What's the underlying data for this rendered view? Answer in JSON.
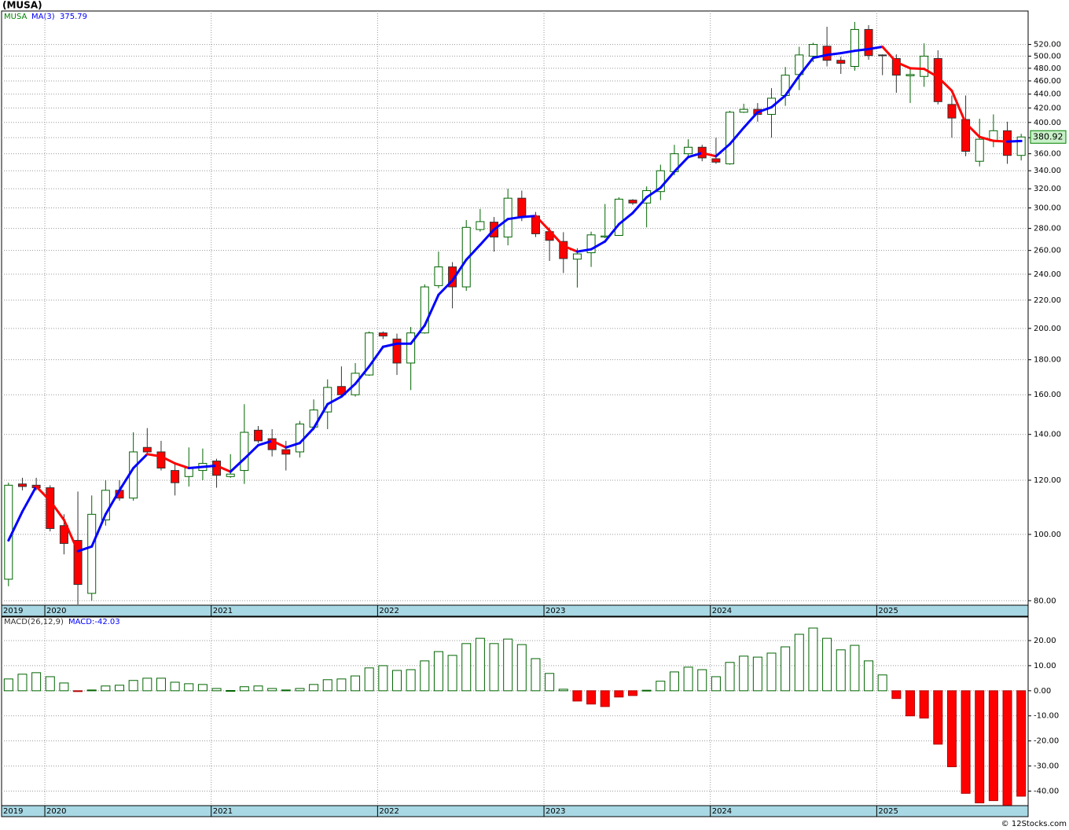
{
  "chart_data": [
    {
      "type": "candlestick",
      "title": "(MUSA)",
      "symbol": "MUSA",
      "log_scale": true,
      "grid": true,
      "up_color": "#006400",
      "down_color": "#ff0000",
      "open": [
        86,
        118.5,
        118,
        117,
        103,
        98,
        82,
        105,
        116,
        113,
        134,
        132,
        124,
        121.5,
        124,
        128,
        121.5,
        124,
        142,
        138,
        133,
        132,
        143.5,
        151,
        164.5,
        160,
        171,
        197,
        193,
        178,
        197,
        231,
        246,
        230,
        279,
        286,
        272,
        310,
        292,
        277,
        268,
        252.5,
        258,
        272,
        273.5,
        308,
        305,
        317,
        339,
        360,
        368,
        354,
        348,
        414,
        418,
        411,
        438,
        470,
        500,
        517,
        493,
        483,
        547,
        502,
        496,
        468,
        467,
        496,
        425,
        404,
        351,
        376,
        389,
        358
      ],
      "high": [
        119,
        121,
        121,
        118,
        107,
        115.5,
        114,
        120,
        120,
        141,
        143,
        137,
        127.5,
        134,
        133.5,
        129,
        131,
        155,
        144,
        142.5,
        137,
        146.5,
        157.5,
        168.5,
        176,
        178,
        198,
        198,
        196.5,
        201,
        232,
        259,
        250,
        288,
        299,
        291,
        320,
        318,
        296,
        281,
        276.5,
        262,
        277,
        304,
        311,
        309,
        322.5,
        347,
        371,
        378,
        371,
        380,
        416,
        426,
        427,
        449,
        482,
        516,
        523,
        552,
        499,
        561,
        555,
        503,
        503,
        479,
        522,
        510,
        438,
        438,
        405,
        411,
        401,
        385
      ],
      "low": [
        84,
        116,
        116,
        101,
        93.5,
        79,
        80,
        103,
        112,
        112,
        131,
        124,
        114,
        117.5,
        120,
        117,
        121,
        118.5,
        136,
        130,
        124,
        129.5,
        142,
        142.5,
        159,
        159,
        170.5,
        193,
        171,
        162.5,
        196.5,
        229,
        214,
        227,
        277,
        259,
        264.5,
        287,
        272,
        251,
        241,
        229.5,
        246,
        271,
        273,
        303,
        281,
        308,
        335,
        357,
        351,
        348,
        347,
        413,
        401,
        380,
        423,
        446,
        490,
        483,
        471,
        476,
        494,
        469,
        442,
        427,
        451,
        425,
        380,
        357,
        345,
        368,
        348,
        352
      ],
      "close": [
        118,
        117.5,
        117,
        102,
        97,
        84.5,
        107,
        116,
        113,
        132,
        132,
        125,
        119,
        125,
        127,
        122,
        122.5,
        141,
        137,
        133,
        131,
        145,
        152,
        164,
        160,
        172,
        197,
        195,
        178,
        197,
        230,
        246,
        230,
        281,
        286.5,
        272,
        310,
        291,
        275,
        269,
        253,
        257,
        274,
        273,
        309,
        305,
        318,
        340,
        360,
        368,
        355,
        350,
        414,
        418,
        411,
        434,
        469,
        502,
        520,
        493,
        488,
        547,
        501,
        501,
        469,
        470,
        500,
        429,
        406,
        363,
        378,
        389,
        358,
        380.92
      ],
      "ma": {
        "name": "MA(3)",
        "up_color": "#0000ff",
        "down_color": "#ff0000",
        "values": [
          98,
          108,
          117.5,
          112,
          105,
          94.5,
          96,
          107,
          116,
          125,
          131,
          130,
          127,
          125,
          125.5,
          126,
          123.5,
          129,
          135,
          137,
          134,
          136,
          143,
          155,
          159,
          166,
          176,
          188,
          190,
          190,
          202,
          224,
          235,
          252,
          265,
          279,
          289,
          291,
          292,
          278,
          264,
          259,
          261,
          268,
          284,
          295,
          311,
          321,
          339,
          356,
          361,
          357,
          372,
          393,
          414,
          421,
          438,
          468,
          497,
          502,
          505,
          509,
          512,
          516,
          490,
          480,
          479,
          466,
          445,
          399,
          381,
          376,
          375,
          375.79
        ]
      },
      "ylim": [
        78.8,
        582
      ],
      "yticks": [
        {
          "value": 80,
          "label": "80.00"
        },
        {
          "value": 100,
          "label": "100.00"
        },
        {
          "value": 120,
          "label": "120.00"
        },
        {
          "value": 140,
          "label": "140.00"
        },
        {
          "value": 160,
          "label": "160.00"
        },
        {
          "value": 180,
          "label": "180.00"
        },
        {
          "value": 200,
          "label": "200.00"
        },
        {
          "value": 220,
          "label": "220.00"
        },
        {
          "value": 240,
          "label": "240.00"
        },
        {
          "value": 260,
          "label": "260.00"
        },
        {
          "value": 280,
          "label": "280.00"
        },
        {
          "value": 300,
          "label": "300.00"
        },
        {
          "value": 320,
          "label": "320.00"
        },
        {
          "value": 340,
          "label": "340.00"
        },
        {
          "value": 360,
          "label": "360.00"
        },
        {
          "value": 380,
          "label": "380.00"
        },
        {
          "value": 400,
          "label": "400.00"
        },
        {
          "value": 420,
          "label": "420.00"
        },
        {
          "value": 440,
          "label": "440.00"
        },
        {
          "value": 460,
          "label": "460.00"
        },
        {
          "value": 480,
          "label": "480.00"
        },
        {
          "value": 500,
          "label": "500.00"
        },
        {
          "value": 520,
          "label": "520.00"
        }
      ],
      "xlim": [
        2019.74,
        2025.91
      ],
      "xticks": [
        2019,
        2020,
        2021,
        2022,
        2023,
        2024,
        2025
      ]
    },
    {
      "type": "bar",
      "title": "MACD(26,12,9)",
      "value_text": "MACD:-42.03",
      "grid": true,
      "up_color": "#006400",
      "down_color": "#ff0000",
      "values": [
        4.7,
        6.6,
        7.2,
        5.6,
        3.1,
        -0.3,
        0.3,
        1.9,
        2.2,
        4.1,
        5.0,
        5.0,
        3.4,
        2.8,
        2.5,
        0.9,
        0.1,
        1.6,
        1.9,
        0.9,
        0.3,
        0.9,
        2.5,
        4.4,
        4.7,
        5.9,
        9.1,
        10.0,
        8.1,
        8.4,
        11.9,
        15.6,
        14.1,
        18.8,
        20.9,
        18.8,
        20.6,
        18.4,
        12.8,
        6.9,
        0.6,
        -4.1,
        -5.3,
        -6.3,
        -2.5,
        -1.9,
        0.2,
        3.8,
        7.5,
        9.4,
        8.4,
        5.6,
        11.3,
        13.8,
        13.4,
        15.0,
        17.5,
        22.5,
        25.0,
        20.9,
        16.3,
        18.1,
        11.9,
        6.3,
        -3.1,
        -10.0,
        -10.9,
        -21.3,
        -30.3,
        -40.9,
        -44.7,
        -43.8,
        -45.6,
        -42.03
      ],
      "ylim": [
        -45.8,
        29.4
      ],
      "yticks": [
        {
          "value": 20,
          "label": "20.00"
        },
        {
          "value": 10,
          "label": "10.00"
        },
        {
          "value": 0,
          "label": "0.00"
        },
        {
          "value": -10,
          "label": "-10.00"
        },
        {
          "value": -20,
          "label": "-20.00"
        },
        {
          "value": -30,
          "label": "-30.00"
        },
        {
          "value": -40,
          "label": "-40.00"
        }
      ],
      "xlim": [
        2019.74,
        2025.91
      ],
      "xticks": [
        2019,
        2020,
        2021,
        2022,
        2023,
        2024,
        2025
      ]
    }
  ],
  "footer": "© 12Stocks.com"
}
